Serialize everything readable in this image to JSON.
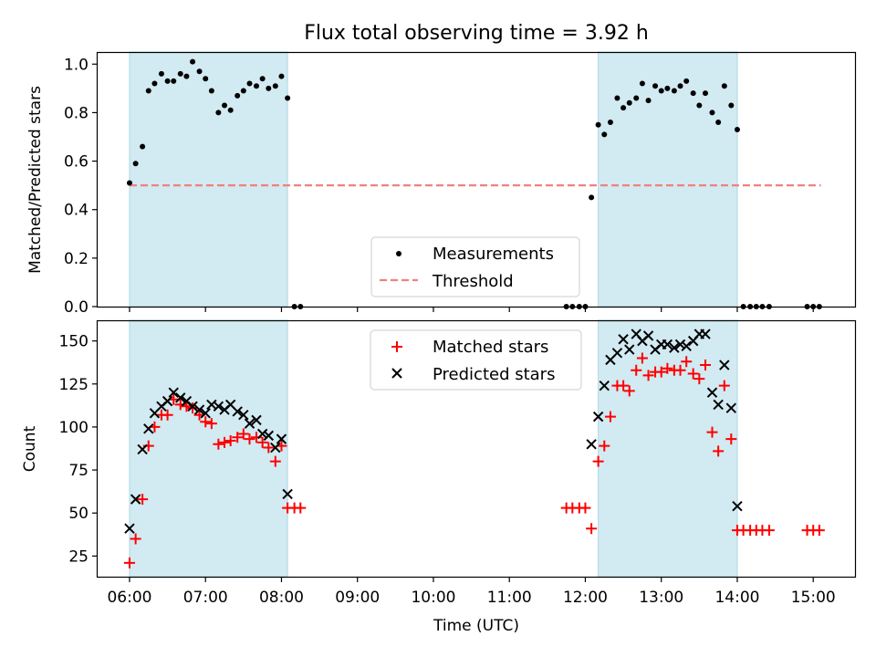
{
  "chart_data": [
    {
      "type": "scatter",
      "title": "Flux total observing time = 3.92 h",
      "xlabel": "",
      "ylabel": "Matched/Predicted stars",
      "xlim": [
        5.58,
        15.55
      ],
      "ylim": [
        0,
        1.05
      ],
      "yticks": [
        0.0,
        0.2,
        0.4,
        0.6,
        0.8,
        1.0
      ],
      "ytick_labels": [
        "0.0",
        "0.2",
        "0.4",
        "0.6",
        "0.8",
        "1.0"
      ],
      "shaded_intervals": [
        [
          6.0,
          8.08
        ],
        [
          12.17,
          14.0
        ]
      ],
      "shade_color": "#add8e6",
      "legend": {
        "placement": "lower-center",
        "entries": [
          "Measurements",
          "Threshold"
        ]
      },
      "series": [
        {
          "name": "Measurements",
          "marker": "dot",
          "color": "#000000",
          "x": [
            6.0,
            6.08,
            6.17,
            6.25,
            6.33,
            6.42,
            6.5,
            6.58,
            6.67,
            6.75,
            6.83,
            6.92,
            7.0,
            7.08,
            7.17,
            7.25,
            7.33,
            7.42,
            7.5,
            7.58,
            7.67,
            7.75,
            7.83,
            7.92,
            8.0,
            8.08,
            8.17,
            8.25,
            11.75,
            11.83,
            11.92,
            12.0,
            12.08,
            12.17,
            12.25,
            12.33,
            12.42,
            12.5,
            12.58,
            12.67,
            12.75,
            12.83,
            12.92,
            13.0,
            13.08,
            13.17,
            13.25,
            13.33,
            13.42,
            13.5,
            13.58,
            13.67,
            13.75,
            13.83,
            13.92,
            14.0,
            14.08,
            14.17,
            14.25,
            14.33,
            14.42,
            14.92,
            15.0,
            15.08
          ],
          "y": [
            0.51,
            0.59,
            0.66,
            0.89,
            0.92,
            0.96,
            0.93,
            0.93,
            0.96,
            0.95,
            1.01,
            0.97,
            0.94,
            0.89,
            0.8,
            0.83,
            0.81,
            0.87,
            0.89,
            0.92,
            0.91,
            0.94,
            0.9,
            0.91,
            0.95,
            0.86,
            0.0,
            0.0,
            0.0,
            0.0,
            0.0,
            0.0,
            0.45,
            0.75,
            0.71,
            0.76,
            0.86,
            0.82,
            0.84,
            0.86,
            0.92,
            0.85,
            0.91,
            0.89,
            0.9,
            0.89,
            0.91,
            0.93,
            0.88,
            0.83,
            0.88,
            0.8,
            0.76,
            0.91,
            0.83,
            0.73,
            0.0,
            0.0,
            0.0,
            0.0,
            0.0,
            0.0,
            0.0,
            0.0
          ]
        },
        {
          "name": "Threshold",
          "style": "dashed",
          "color": "#f08080",
          "x": [
            6.0,
            15.1
          ],
          "y": [
            0.5,
            0.5
          ]
        }
      ]
    },
    {
      "type": "scatter",
      "title": "",
      "xlabel": "Time (UTC)",
      "ylabel": "Count",
      "xlim": [
        5.58,
        15.55
      ],
      "ylim": [
        13,
        162
      ],
      "yticks": [
        25,
        50,
        75,
        100,
        125,
        150
      ],
      "ytick_labels": [
        "25",
        "50",
        "75",
        "100",
        "125",
        "150"
      ],
      "xticks": [
        6,
        7,
        8,
        9,
        10,
        11,
        12,
        13,
        14,
        15
      ],
      "xtick_labels": [
        "06:00",
        "07:00",
        "08:00",
        "09:00",
        "10:00",
        "11:00",
        "12:00",
        "13:00",
        "14:00",
        "15:00"
      ],
      "shaded_intervals": [
        [
          6.0,
          8.08
        ],
        [
          12.17,
          14.0
        ]
      ],
      "shade_color": "#add8e6",
      "legend": {
        "placement": "upper-center",
        "entries": [
          "Matched stars",
          "Predicted stars"
        ]
      },
      "series": [
        {
          "name": "Matched stars",
          "marker": "plus",
          "color": "#ff0000",
          "x": [
            6.0,
            6.08,
            6.17,
            6.25,
            6.33,
            6.42,
            6.5,
            6.58,
            6.67,
            6.75,
            6.83,
            6.92,
            7.0,
            7.08,
            7.17,
            7.25,
            7.33,
            7.42,
            7.5,
            7.58,
            7.67,
            7.75,
            7.83,
            7.92,
            8.0,
            8.08,
            8.17,
            8.25,
            11.75,
            11.83,
            11.92,
            12.0,
            12.08,
            12.17,
            12.25,
            12.33,
            12.42,
            12.5,
            12.58,
            12.67,
            12.75,
            12.83,
            12.92,
            13.0,
            13.08,
            13.17,
            13.25,
            13.33,
            13.42,
            13.5,
            13.58,
            13.67,
            13.75,
            13.83,
            13.92,
            14.0,
            14.08,
            14.17,
            14.25,
            14.33,
            14.42,
            14.92,
            15.0,
            15.08
          ],
          "y": [
            21,
            35,
            58,
            89,
            100,
            107,
            107,
            116,
            113,
            112,
            111,
            107,
            103,
            102,
            90,
            91,
            92,
            94,
            96,
            93,
            94,
            91,
            88,
            80,
            89,
            53,
            53,
            53,
            53,
            53,
            53,
            53,
            41,
            80,
            89,
            106,
            124,
            124,
            121,
            133,
            140,
            130,
            132,
            132,
            134,
            133,
            133,
            138,
            131,
            128,
            136,
            97,
            86,
            124,
            93,
            40,
            40,
            40,
            40,
            40,
            40,
            40,
            40,
            40
          ]
        },
        {
          "name": "Predicted stars",
          "marker": "x",
          "color": "#000000",
          "x": [
            6.0,
            6.08,
            6.17,
            6.25,
            6.33,
            6.42,
            6.5,
            6.58,
            6.67,
            6.75,
            6.83,
            6.92,
            7.0,
            7.08,
            7.17,
            7.25,
            7.33,
            7.42,
            7.5,
            7.58,
            7.67,
            7.75,
            7.83,
            7.92,
            8.0,
            8.08,
            12.08,
            12.17,
            12.25,
            12.33,
            12.42,
            12.5,
            12.58,
            12.67,
            12.75,
            12.83,
            12.92,
            13.0,
            13.08,
            13.17,
            13.25,
            13.33,
            13.42,
            13.5,
            13.58,
            13.67,
            13.75,
            13.83,
            13.92,
            14.0
          ],
          "y": [
            41,
            58,
            87,
            99,
            108,
            112,
            115,
            120,
            117,
            115,
            112,
            110,
            108,
            113,
            112,
            110,
            113,
            109,
            107,
            102,
            104,
            96,
            95,
            88,
            93,
            61,
            90,
            106,
            124,
            139,
            143,
            151,
            145,
            154,
            150,
            153,
            145,
            148,
            148,
            146,
            148,
            147,
            150,
            154,
            154,
            120,
            113,
            136,
            111,
            54
          ]
        }
      ]
    }
  ]
}
